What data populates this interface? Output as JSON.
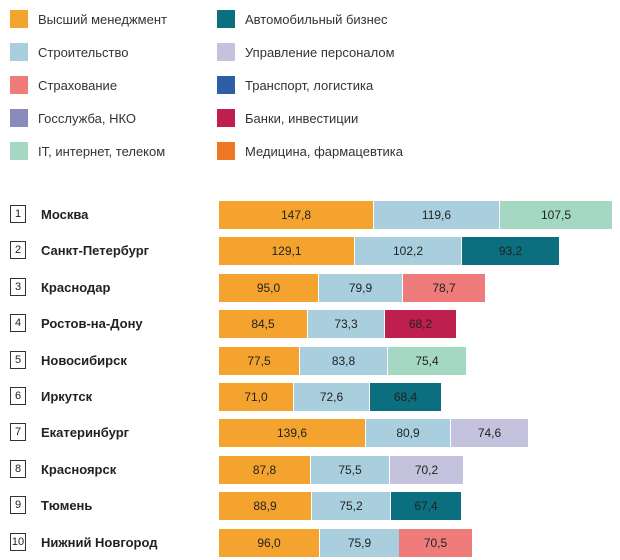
{
  "colors": {
    "Высший менеджмент": "#f4a32e",
    "Строительство": "#a9cfdf",
    "Страхование": "#ef7b7b",
    "Госслужба, НКО": "#8a8bbd",
    "IT, интернет, телеком": "#a4d8c2",
    "Автомобильный бизнес": "#0b6f80",
    "Управление персоналом": "#c4c2dc",
    "Транспорт, логистика": "#2d5ea6",
    "Банки, инвестиции": "#be1f4d",
    "Медицина, фармацевтика": "#ee7823"
  },
  "chart_data": {
    "type": "bar",
    "orientation": "horizontal",
    "stacked": true,
    "legend": {
      "placement": "top",
      "entries": [
        "Высший менеджмент",
        "Строительство",
        "Страхование",
        "Госслужба, НКО",
        "IT, интернет, телеком",
        "Автомобильный бизнес",
        "Управление персоналом",
        "Транспорт, логистика",
        "Банки, инвестиции",
        "Медицина, фармацевтика"
      ]
    },
    "rows": [
      {
        "rank": "1",
        "city": "Москва",
        "segments": [
          {
            "category": "Высший менеджмент",
            "value": 147.8,
            "label": "147,8"
          },
          {
            "category": "Строительство",
            "value": 119.6,
            "label": "119,6"
          },
          {
            "category": "IT, интернет, телеком",
            "value": 107.5,
            "label": "107,5"
          }
        ]
      },
      {
        "rank": "2",
        "city": "Санкт-Петербург",
        "segments": [
          {
            "category": "Высший менеджмент",
            "value": 129.1,
            "label": "129,1"
          },
          {
            "category": "Строительство",
            "value": 102.2,
            "label": "102,2"
          },
          {
            "category": "Автомобильный бизнес",
            "value": 93.2,
            "label": "93,2"
          }
        ]
      },
      {
        "rank": "3",
        "city": "Краснодар",
        "segments": [
          {
            "category": "Высший менеджмент",
            "value": 95.0,
            "label": "95,0"
          },
          {
            "category": "Строительство",
            "value": 79.9,
            "label": "79,9"
          },
          {
            "category": "Страхование",
            "value": 78.7,
            "label": "78,7"
          }
        ]
      },
      {
        "rank": "4",
        "city": "Ростов-на-Дону",
        "segments": [
          {
            "category": "Высший менеджмент",
            "value": 84.5,
            "label": "84,5"
          },
          {
            "category": "Строительство",
            "value": 73.3,
            "label": "73,3"
          },
          {
            "category": "Банки, инвестиции",
            "value": 68.2,
            "label": "68,2"
          }
        ]
      },
      {
        "rank": "5",
        "city": "Новосибирск",
        "segments": [
          {
            "category": "Высший менеджмент",
            "value": 77.5,
            "label": "77,5"
          },
          {
            "category": "Строительство",
            "value": 83.8,
            "label": "83,8"
          },
          {
            "category": "IT, интернет, телеком",
            "value": 75.4,
            "label": "75,4"
          }
        ]
      },
      {
        "rank": "6",
        "city": "Иркутск",
        "segments": [
          {
            "category": "Высший менеджмент",
            "value": 71.0,
            "label": "71,0"
          },
          {
            "category": "Строительство",
            "value": 72.6,
            "label": "72,6"
          },
          {
            "category": "Автомобильный бизнес",
            "value": 68.4,
            "label": "68,4"
          }
        ]
      },
      {
        "rank": "7",
        "city": "Екатеринбург",
        "segments": [
          {
            "category": "Высший менеджмент",
            "value": 139.6,
            "label": "139,6"
          },
          {
            "category": "Строительство",
            "value": 80.9,
            "label": "80,9"
          },
          {
            "category": "Управление персоналом",
            "value": 74.6,
            "label": "74,6"
          }
        ]
      },
      {
        "rank": "8",
        "city": "Красноярск",
        "segments": [
          {
            "category": "Высший менеджмент",
            "value": 87.8,
            "label": "87,8"
          },
          {
            "category": "Строительство",
            "value": 75.5,
            "label": "75,5"
          },
          {
            "category": "Управление персоналом",
            "value": 70.2,
            "label": "70,2"
          }
        ]
      },
      {
        "rank": "9",
        "city": "Тюмень",
        "segments": [
          {
            "category": "Высший менеджмент",
            "value": 88.9,
            "label": "88,9"
          },
          {
            "category": "Строительство",
            "value": 75.2,
            "label": "75,2"
          },
          {
            "category": "Автомобильный бизнес",
            "value": 67.4,
            "label": "67,4"
          }
        ]
      },
      {
        "rank": "10",
        "city": "Нижний Новгород",
        "segments": [
          {
            "category": "Высший менеджмент",
            "value": 96.0,
            "label": "96,0"
          },
          {
            "category": "Строительство",
            "value": 75.9,
            "label": "75,9"
          },
          {
            "category": "Страхование",
            "value": 70.5,
            "label": "70,5"
          }
        ]
      }
    ]
  }
}
